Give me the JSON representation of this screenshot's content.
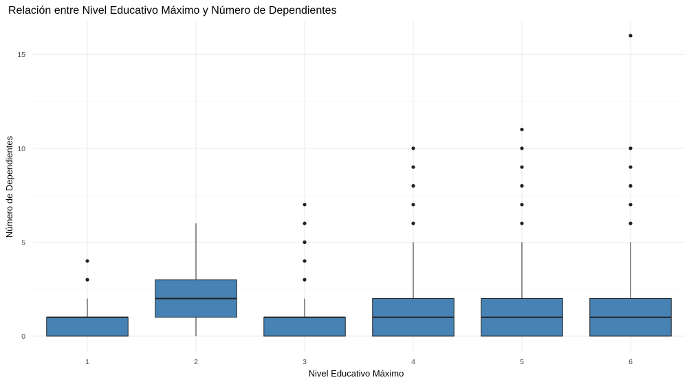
{
  "chart_data": {
    "type": "boxplot",
    "title": "Relación entre Nivel Educativo Máximo y Número de Dependientes",
    "xlabel": "Nivel Educativo Máximo",
    "ylabel": "Número de Dependientes",
    "categories": [
      "1",
      "2",
      "3",
      "4",
      "5",
      "6"
    ],
    "yticks": [
      0,
      5,
      10,
      15
    ],
    "ylim": [
      -0.8,
      16.8
    ],
    "grid": true,
    "box_color": "#4682B4",
    "boxes": [
      {
        "category": "1",
        "min": 0,
        "q1": 0,
        "median": 1,
        "q3": 1,
        "max": 2,
        "outliers": [
          3,
          4
        ]
      },
      {
        "category": "2",
        "min": 0,
        "q1": 1,
        "median": 2,
        "q3": 3,
        "max": 6,
        "outliers": []
      },
      {
        "category": "3",
        "min": 0,
        "q1": 0,
        "median": 1,
        "q3": 1,
        "max": 2,
        "outliers": [
          3,
          4,
          5,
          6,
          7
        ]
      },
      {
        "category": "4",
        "min": 0,
        "q1": 0,
        "median": 1,
        "q3": 2,
        "max": 5,
        "outliers": [
          6,
          7,
          8,
          9,
          10
        ]
      },
      {
        "category": "5",
        "min": 0,
        "q1": 0,
        "median": 1,
        "q3": 2,
        "max": 5,
        "outliers": [
          6,
          7,
          8,
          9,
          10,
          11
        ]
      },
      {
        "category": "6",
        "min": 0,
        "q1": 0,
        "median": 1,
        "q3": 2,
        "max": 5,
        "outliers": [
          6,
          7,
          8,
          9,
          10,
          16
        ]
      }
    ]
  }
}
